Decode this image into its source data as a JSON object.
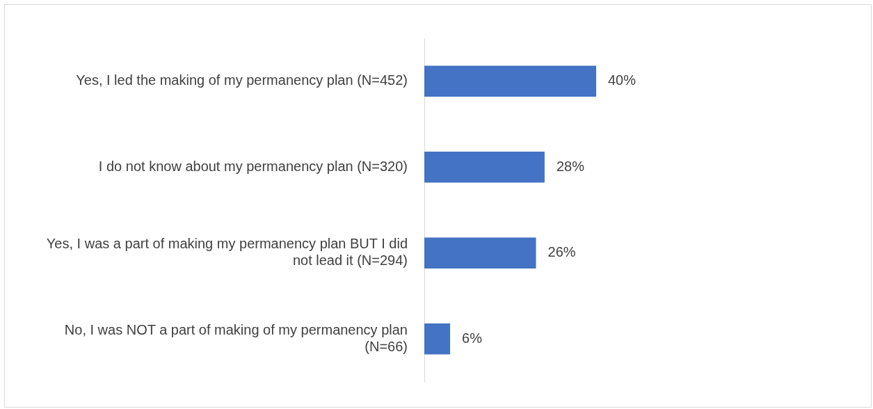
{
  "chart_data": {
    "type": "bar",
    "orientation": "horizontal",
    "categories": [
      "Yes, I led the making of my permanency plan (N=452)",
      "I do not know about my permanency plan (N=320)",
      "Yes, I was a part of making my permanency plan BUT I did not lead it (N=294)",
      "No, I was NOT a part of making of my permanency plan (N=66)"
    ],
    "values": [
      40,
      28,
      26,
      6
    ],
    "value_labels": [
      "40%",
      "28%",
      "26%",
      "6%"
    ],
    "color": "#4472c4",
    "tick_labels": "y",
    "legend": false
  }
}
